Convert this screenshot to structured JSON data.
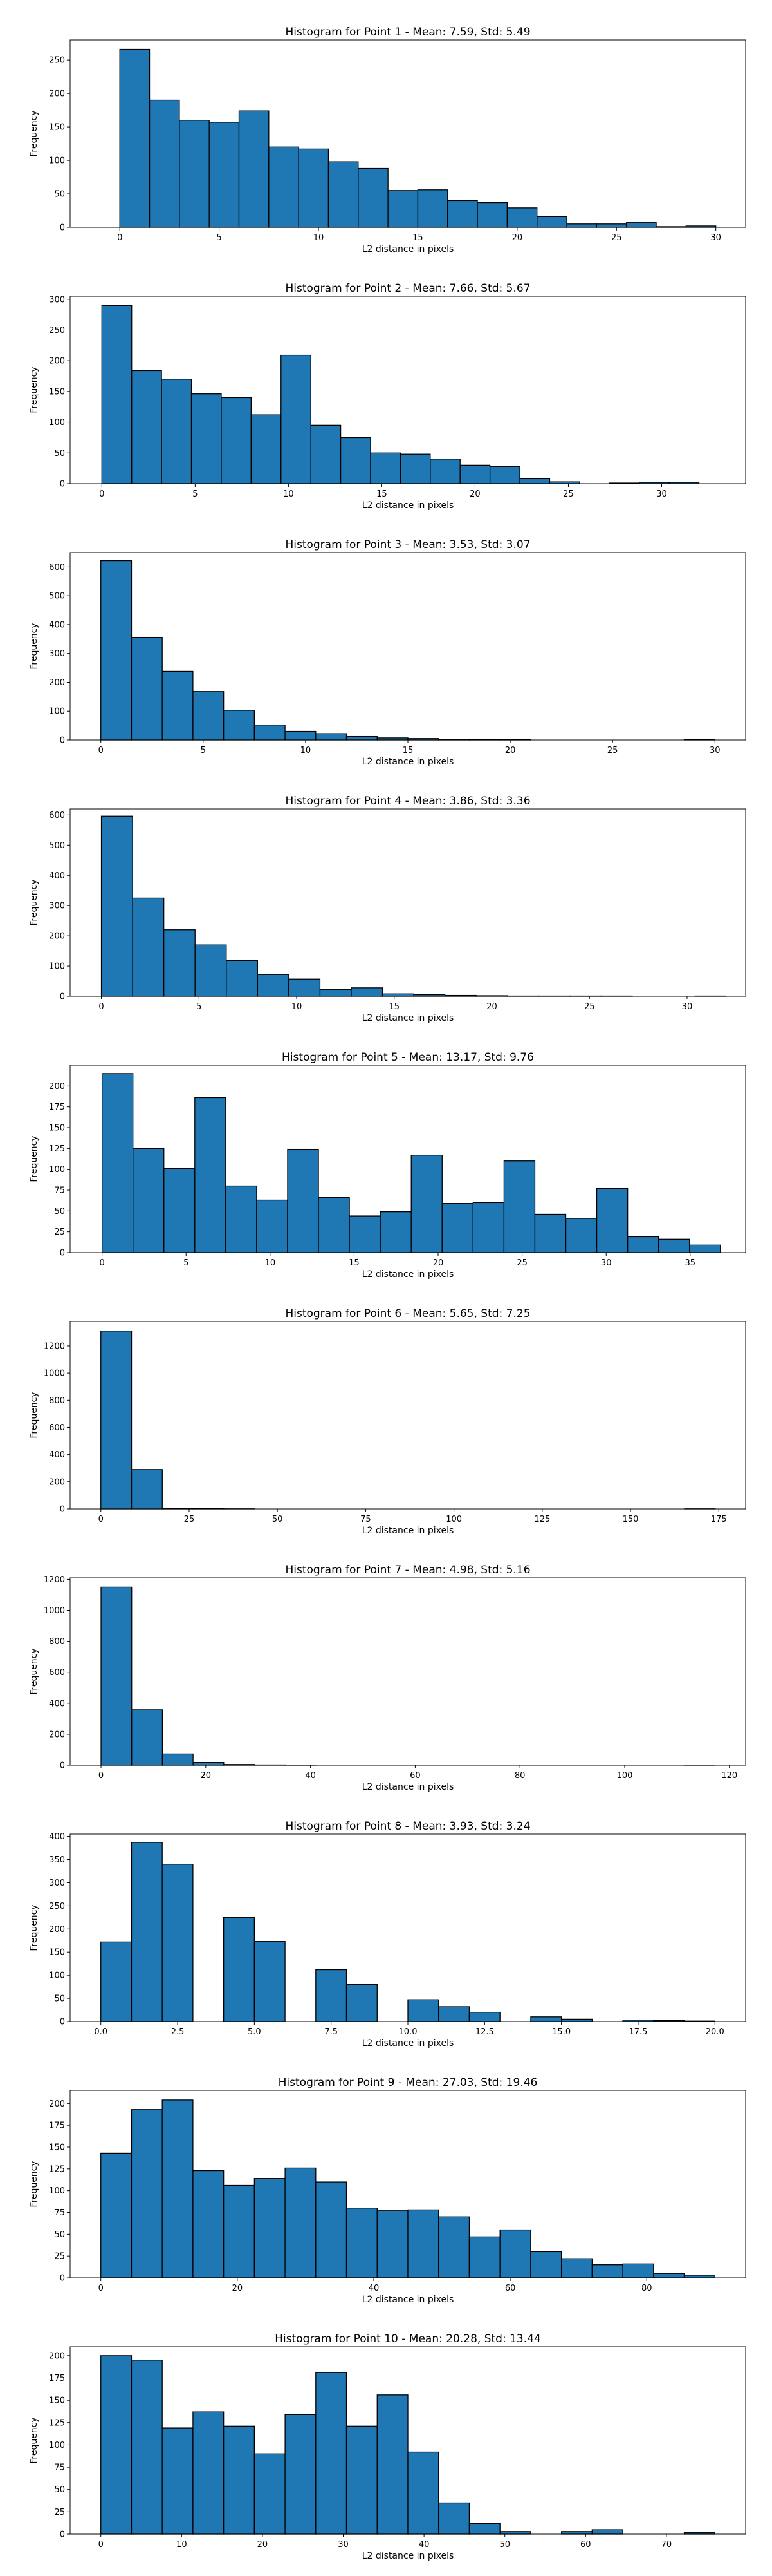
{
  "chart_data": [
    {
      "type": "bar",
      "title": "Histogram for Point 1 - Mean: 7.59, Std: 5.49",
      "xlabel": "L2 distance in pixels",
      "ylabel": "Frequency",
      "xlim": [
        -2.5,
        31.5
      ],
      "ylim": [
        0,
        280
      ],
      "bin_start": 0,
      "bin_width": 1.5,
      "values": [
        266,
        190,
        160,
        157,
        174,
        120,
        117,
        98,
        88,
        55,
        56,
        40,
        37,
        29,
        16,
        5,
        5,
        7,
        1,
        2
      ],
      "xticks": [
        0,
        5,
        10,
        15,
        20,
        25,
        30
      ],
      "xtick_labels": [
        "0",
        "5",
        "10",
        "15",
        "20",
        "25",
        "30"
      ],
      "yticks": [
        0,
        50,
        100,
        150,
        200,
        250
      ],
      "ytick_labels": [
        "0",
        "50",
        "100",
        "150",
        "200",
        "250"
      ],
      "grid": false
    },
    {
      "type": "bar",
      "title": "Histogram for Point 2 - Mean: 7.66, Std: 5.67",
      "xlabel": "L2 distance in pixels",
      "ylabel": "Frequency",
      "xlim": [
        -1.7,
        34.5
      ],
      "ylim": [
        0,
        305
      ],
      "bin_start": 0,
      "bin_width": 1.6,
      "values": [
        290,
        184,
        170,
        146,
        140,
        112,
        209,
        95,
        75,
        50,
        48,
        40,
        30,
        28,
        8,
        3,
        0,
        1,
        2,
        2
      ],
      "xticks": [
        0,
        5,
        10,
        15,
        20,
        25,
        30
      ],
      "xtick_labels": [
        "0",
        "5",
        "10",
        "15",
        "20",
        "25",
        "30"
      ],
      "yticks": [
        0,
        50,
        100,
        150,
        200,
        250,
        300
      ],
      "ytick_labels": [
        "0",
        "50",
        "100",
        "150",
        "200",
        "250",
        "300"
      ],
      "grid": false
    },
    {
      "type": "bar",
      "title": "Histogram for Point 3 - Mean: 3.53, Std: 3.07",
      "xlabel": "L2 distance in pixels",
      "ylabel": "Frequency",
      "xlim": [
        -1.5,
        31.5
      ],
      "ylim": [
        0,
        650
      ],
      "bin_start": 0,
      "bin_width": 1.5,
      "values": [
        622,
        356,
        238,
        168,
        103,
        52,
        30,
        22,
        12,
        7,
        5,
        3,
        2,
        1,
        0,
        0,
        0,
        0,
        0,
        1
      ],
      "xticks": [
        0,
        5,
        10,
        15,
        20,
        25,
        30
      ],
      "xtick_labels": [
        "0",
        "5",
        "10",
        "15",
        "20",
        "25",
        "30"
      ],
      "yticks": [
        0,
        100,
        200,
        300,
        400,
        500,
        600
      ],
      "ytick_labels": [
        "0",
        "100",
        "200",
        "300",
        "400",
        "500",
        "600"
      ],
      "grid": false
    },
    {
      "type": "bar",
      "title": "Histogram for Point 4 - Mean: 3.86, Std: 3.36",
      "xlabel": "L2 distance in pixels",
      "ylabel": "Frequency",
      "xlim": [
        -1.6,
        33
      ],
      "ylim": [
        0,
        620
      ],
      "bin_start": 0,
      "bin_width": 1.6,
      "values": [
        596,
        325,
        220,
        170,
        118,
        72,
        57,
        22,
        28,
        8,
        5,
        3,
        2,
        1,
        1,
        1,
        1,
        0,
        0,
        1
      ],
      "xticks": [
        0,
        5,
        10,
        15,
        20,
        25,
        30
      ],
      "xtick_labels": [
        "0",
        "5",
        "10",
        "15",
        "20",
        "25",
        "30"
      ],
      "yticks": [
        0,
        100,
        200,
        300,
        400,
        500,
        600
      ],
      "ytick_labels": [
        "0",
        "100",
        "200",
        "300",
        "400",
        "500",
        "600"
      ],
      "grid": false
    },
    {
      "type": "bar",
      "title": "Histogram for Point 5 - Mean: 13.17, Std: 9.76",
      "xlabel": "L2 distance in pixels",
      "ylabel": "Frequency",
      "xlim": [
        -1.9,
        38.3
      ],
      "ylim": [
        0,
        225
      ],
      "bin_start": 0,
      "bin_width": 1.84,
      "values": [
        215,
        125,
        101,
        186,
        80,
        63,
        124,
        66,
        44,
        49,
        117,
        59,
        60,
        110,
        46,
        41,
        77,
        19,
        16,
        9
      ],
      "xticks": [
        0,
        5,
        10,
        15,
        20,
        25,
        30,
        35
      ],
      "xtick_labels": [
        "0",
        "5",
        "10",
        "15",
        "20",
        "25",
        "30",
        "35"
      ],
      "yticks": [
        0,
        25,
        50,
        75,
        100,
        125,
        150,
        175,
        200
      ],
      "ytick_labels": [
        "0",
        "25",
        "50",
        "75",
        "100",
        "125",
        "150",
        "175",
        "200"
      ],
      "grid": false
    },
    {
      "type": "bar",
      "title": "Histogram for Point 6 - Mean: 5.65, Std: 7.25",
      "xlabel": "L2 distance in pixels",
      "ylabel": "Frequency",
      "xlim": [
        -8.7,
        182.6
      ],
      "ylim": [
        0,
        1380
      ],
      "bin_start": 0,
      "bin_width": 8.7,
      "values": [
        1310,
        290,
        5,
        2,
        1,
        0,
        0,
        0,
        0,
        0,
        0,
        0,
        0,
        0,
        0,
        0,
        0,
        0,
        0,
        1
      ],
      "xticks": [
        0,
        25,
        50,
        75,
        100,
        125,
        150,
        175
      ],
      "xtick_labels": [
        "0",
        "25",
        "50",
        "75",
        "100",
        "125",
        "150",
        "175"
      ],
      "yticks": [
        0,
        200,
        400,
        600,
        800,
        1000,
        1200
      ],
      "ytick_labels": [
        "0",
        "200",
        "400",
        "600",
        "800",
        "1000",
        "1200"
      ],
      "grid": false
    },
    {
      "type": "bar",
      "title": "Histogram for Point 7 - Mean: 4.98, Std: 5.16",
      "xlabel": "L2 distance in pixels",
      "ylabel": "Frequency",
      "xlim": [
        -5.9,
        123.1
      ],
      "ylim": [
        0,
        1210
      ],
      "bin_start": 0,
      "bin_width": 5.86,
      "values": [
        1150,
        358,
        73,
        18,
        5,
        2,
        1,
        0,
        0,
        0,
        0,
        0,
        0,
        0,
        0,
        0,
        0,
        0,
        0,
        1
      ],
      "xticks": [
        0,
        20,
        40,
        60,
        80,
        100,
        120
      ],
      "xtick_labels": [
        "0",
        "20",
        "40",
        "60",
        "80",
        "100",
        "120"
      ],
      "yticks": [
        0,
        200,
        400,
        600,
        800,
        1000,
        1200
      ],
      "ytick_labels": [
        "0",
        "200",
        "400",
        "600",
        "800",
        "1000",
        "1200"
      ],
      "grid": false
    },
    {
      "type": "bar",
      "title": "Histogram for Point 8 - Mean: 3.93, Std: 3.24",
      "xlabel": "L2 distance in pixels",
      "ylabel": "Frequency",
      "xlim": [
        -1,
        21
      ],
      "ylim": [
        0,
        405
      ],
      "bin_start": 0,
      "bin_width": 1,
      "values": [
        172,
        387,
        340,
        0,
        225,
        173,
        0,
        112,
        80,
        0,
        47,
        32,
        20,
        0,
        10,
        5,
        0,
        3,
        2,
        1
      ],
      "xticks": [
        0,
        2.5,
        5,
        7.5,
        10,
        12.5,
        15,
        17.5,
        20
      ],
      "xtick_labels": [
        "0.0",
        "2.5",
        "5.0",
        "7.5",
        "10.0",
        "12.5",
        "15.0",
        "17.5",
        "20.0"
      ],
      "yticks": [
        0,
        50,
        100,
        150,
        200,
        250,
        300,
        350,
        400
      ],
      "ytick_labels": [
        "0",
        "50",
        "100",
        "150",
        "200",
        "250",
        "300",
        "350",
        "400"
      ],
      "grid": false
    },
    {
      "type": "bar",
      "title": "Histogram for Point 9 - Mean: 27.03, Std: 19.46",
      "xlabel": "L2 distance in pixels",
      "ylabel": "Frequency",
      "xlim": [
        -4.5,
        94.5
      ],
      "ylim": [
        0,
        215
      ],
      "bin_start": 0,
      "bin_width": 4.5,
      "values": [
        143,
        193,
        204,
        123,
        106,
        114,
        126,
        110,
        80,
        77,
        78,
        70,
        47,
        55,
        30,
        22,
        15,
        16,
        5,
        3
      ],
      "xticks": [
        0,
        20,
        40,
        60,
        80
      ],
      "xtick_labels": [
        "0",
        "20",
        "40",
        "60",
        "80"
      ],
      "yticks": [
        0,
        25,
        50,
        75,
        100,
        125,
        150,
        175,
        200
      ],
      "ytick_labels": [
        "0",
        "25",
        "50",
        "75",
        "100",
        "125",
        "150",
        "175",
        "200"
      ],
      "grid": false
    },
    {
      "type": "bar",
      "title": "Histogram for Point 10 - Mean: 20.28, Std: 13.44",
      "xlabel": "L2 distance in pixels",
      "ylabel": "Frequency",
      "xlim": [
        -3.8,
        79.8
      ],
      "ylim": [
        0,
        210
      ],
      "bin_start": 0,
      "bin_width": 3.8,
      "values": [
        200,
        195,
        119,
        137,
        121,
        90,
        134,
        181,
        121,
        156,
        92,
        35,
        12,
        3,
        0,
        3,
        5,
        0,
        0,
        2
      ],
      "xticks": [
        0,
        10,
        20,
        30,
        40,
        50,
        60,
        70
      ],
      "xtick_labels": [
        "0",
        "10",
        "20",
        "30",
        "40",
        "50",
        "60",
        "70"
      ],
      "yticks": [
        0,
        25,
        50,
        75,
        100,
        125,
        150,
        175,
        200
      ],
      "ytick_labels": [
        "0",
        "25",
        "50",
        "75",
        "100",
        "125",
        "150",
        "175",
        "200"
      ],
      "grid": false
    }
  ]
}
